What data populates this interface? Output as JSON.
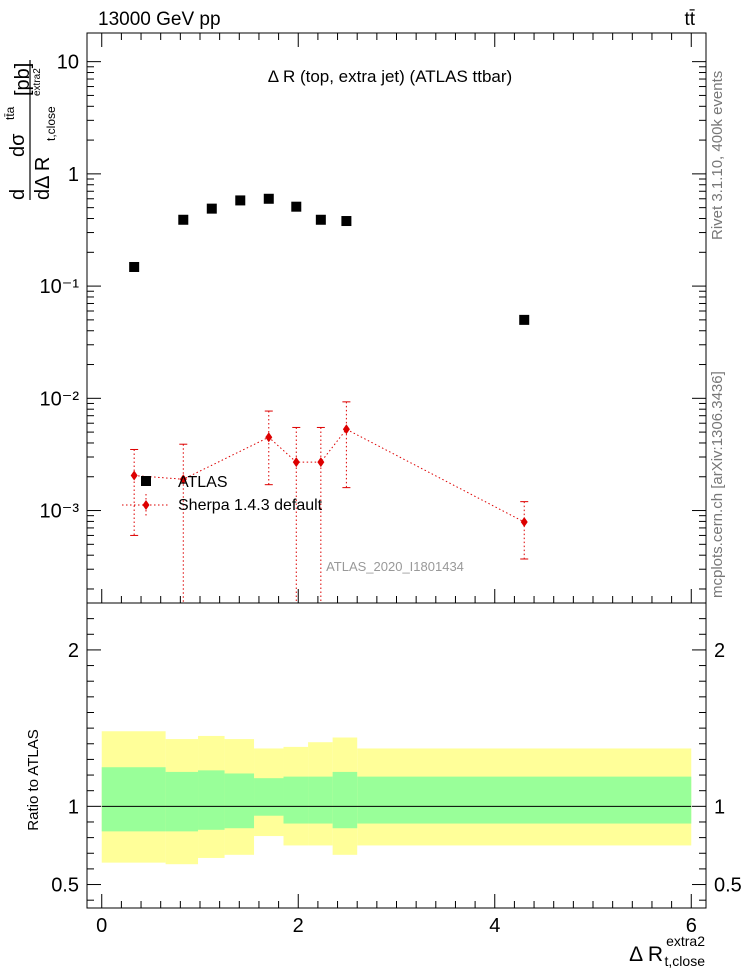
{
  "header": {
    "energy_label": "13000 GeV pp",
    "process_label": "tt̄"
  },
  "side_labels": {
    "rivet": "Rivet 3.1.10,  400k events",
    "mcplots": "mcplots.cern.ch [arXiv:1306.3436]"
  },
  "chart_data": [
    {
      "type": "scatter",
      "title": "Δ R (top, extra jet) (ATLAS ttbar)",
      "watermark": "ATLAS_2020_I1801434",
      "ylabel": "dσ / dΔ R [pb]",
      "ylabel_parts": {
        "main": "dσ",
        "sup": "tt̄a",
        "den": "dΔ R",
        "den_sub": "t,close",
        "den_sup": "extra2",
        "unit": "[pb]"
      },
      "xlim": [
        -0.15,
        6.15
      ],
      "ylim": [
        0.00015,
        18
      ],
      "yscale": "log",
      "yticks": [
        {
          "value": 0.001,
          "label": "10⁻³"
        },
        {
          "value": 0.01,
          "label": "10⁻²"
        },
        {
          "value": 0.1,
          "label": "10⁻¹"
        },
        {
          "value": 1,
          "label": "1"
        },
        {
          "value": 10,
          "label": "10"
        }
      ],
      "legend": {
        "position": "lower-left",
        "entries": [
          "ATLAS",
          "Sherpa 1.4.3 default"
        ]
      },
      "series": [
        {
          "name": "ATLAS",
          "color": "#000000",
          "marker": "square",
          "x": [
            0.33,
            0.83,
            1.12,
            1.41,
            1.7,
            1.98,
            2.23,
            2.49,
            4.3
          ],
          "y": [
            0.148,
            0.39,
            0.49,
            0.58,
            0.6,
            0.51,
            0.39,
            0.38,
            0.05
          ]
        },
        {
          "name": "Sherpa 1.4.3 default",
          "color": "#dd0000",
          "marker": "diamond",
          "x": [
            0.33,
            0.83,
            1.7,
            1.98,
            2.23,
            2.49,
            4.3
          ],
          "y": [
            0.00205,
            0.0019,
            0.0045,
            0.0027,
            0.0027,
            0.0053,
            0.00079
          ],
          "y_low": [
            0.0006,
            0.00012,
            0.0017,
            0.00012,
            0.00012,
            0.0016,
            0.00037
          ],
          "y_high": [
            0.0035,
            0.0039,
            0.0077,
            0.0055,
            0.0055,
            0.0093,
            0.0012
          ]
        }
      ]
    },
    {
      "type": "area",
      "ylabel": "Ratio to ATLAS",
      "xlabel": "Δ R",
      "xlabel_sub": "t,close",
      "xlabel_sup": "extra2",
      "xlim": [
        -0.15,
        6.15
      ],
      "ylim": [
        0.35,
        2.3
      ],
      "xticks": [
        0,
        2,
        4,
        6
      ],
      "yticks": [
        0.5,
        1,
        2
      ],
      "reference_line": 1,
      "bins": [
        0.0,
        0.65,
        0.98,
        1.25,
        1.55,
        1.85,
        2.1,
        2.35,
        2.6,
        6.0
      ],
      "band_inner_low": [
        0.84,
        0.84,
        0.85,
        0.86,
        0.94,
        0.89,
        0.89,
        0.86,
        0.89
      ],
      "band_inner_high": [
        1.25,
        1.22,
        1.23,
        1.21,
        1.18,
        1.19,
        1.19,
        1.22,
        1.19
      ],
      "band_outer_low": [
        0.64,
        0.63,
        0.67,
        0.69,
        0.81,
        0.75,
        0.75,
        0.69,
        0.75
      ],
      "band_outer_high": [
        1.48,
        1.43,
        1.45,
        1.43,
        1.37,
        1.38,
        1.41,
        1.44,
        1.37
      ],
      "colors": {
        "inner": "#99ff99",
        "outer": "#ffff99"
      }
    }
  ]
}
